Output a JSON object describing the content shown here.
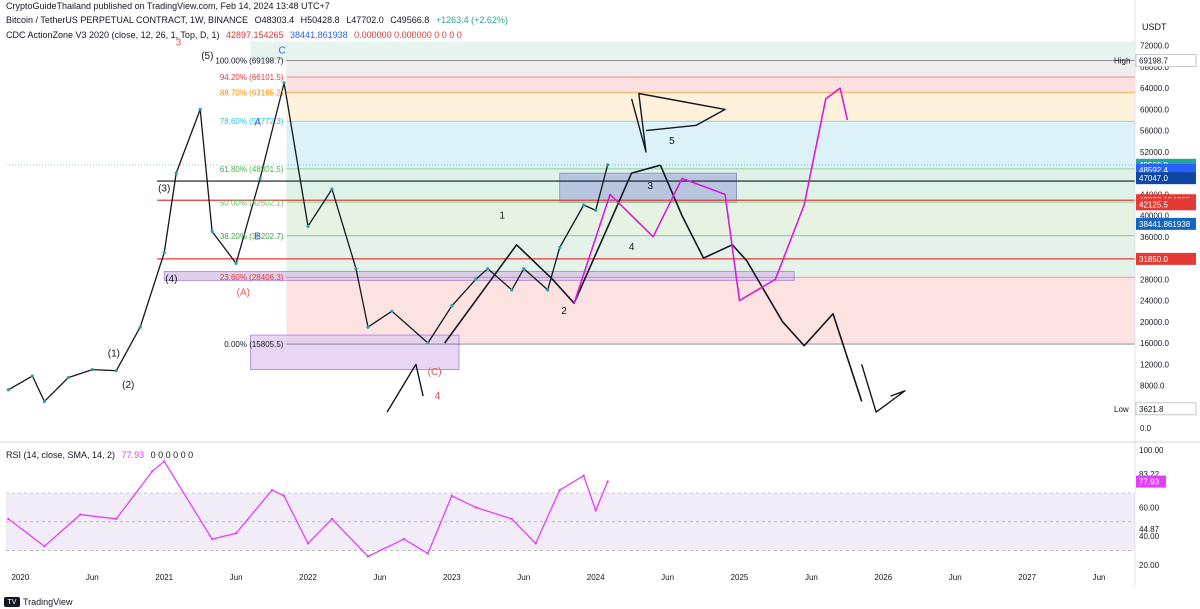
{
  "header": {
    "line1": "CryptoGuideThailand published on TradingView.com, Feb 14, 2024 13:48 UTC+7",
    "symbol": "Bitcoin / TetherUS PERPETUAL CONTRACT, 1W, BINANCE",
    "open": "O48303.4",
    "high": "H50428.8",
    "low": "L47702.0",
    "close": "C49566.8",
    "change": "+1263.4 (+2.62%)",
    "indicator": "CDC ActionZone V3 2020 (close, 12, 26, 1, Top, D, 1)",
    "ind_v1": "42897.154265",
    "ind_v2": "38441.861938",
    "ind_v3": "0.000000  0.000000  0  0  0  0",
    "rsi_label": "RSI (14, close, SMA, 14, 2)",
    "rsi_value": "77.93",
    "rsi_zeros": "0  0  0  0  0  0",
    "currency": "USDT",
    "brand": "TradingView"
  },
  "colors": {
    "up": "#26a69a",
    "down": "#ef5350",
    "rsi": "#e040fb",
    "pen": "#d81bd6",
    "accent": "#2962ff",
    "red_line": "#e53935",
    "black": "#131722"
  },
  "chart_data": [
    {
      "type": "line",
      "title": "Bitcoin / TetherUS PERPETUAL CONTRACT, 1W, BINANCE",
      "x_ticks": [
        "2020",
        "Jun",
        "2021",
        "Jun",
        "2022",
        "Jun",
        "2023",
        "Jun",
        "2024",
        "Jun",
        "2025",
        "Jun",
        "2026",
        "Jun",
        "2027",
        "Jun"
      ],
      "y_ticks": [
        72000,
        68000,
        64000,
        60000,
        56000,
        52000,
        48000,
        44000,
        40000,
        36000,
        32000,
        28000,
        24000,
        20000,
        16000,
        12000,
        8000,
        0
      ],
      "price_labels": [
        {
          "text": "69198.7",
          "tag": "High"
        },
        {
          "text": "49566.8",
          "sub": "4d 18h"
        },
        {
          "text": "48592.4"
        },
        {
          "text": "47047.0"
        },
        {
          "text": "42897.154265"
        },
        {
          "text": "42125.5"
        },
        {
          "text": "38441.861938"
        },
        {
          "text": "31850.0"
        },
        {
          "text": "3621.8",
          "tag": "Low"
        }
      ],
      "fib_levels": [
        {
          "label": "100.00% (69198.7)",
          "value": 69198.7
        },
        {
          "label": "94.20% (66101.5)",
          "value": 66101.5
        },
        {
          "label": "88.70% (63165.2)",
          "value": 63165.2
        },
        {
          "label": "78.60% (57772.3)",
          "value": 57772.3
        },
        {
          "label": "61.80% (48801.5)",
          "value": 48801.5
        },
        {
          "label": "50.00% (42502.1)",
          "value": 42502.1
        },
        {
          "label": "38.20% (36202.7)",
          "value": 36202.7
        },
        {
          "label": "23.60% (28406.3)",
          "value": 28406.3
        },
        {
          "label": "0.00% (15805.5)",
          "value": 15805.5
        }
      ],
      "series": [
        {
          "name": "BTCUSDT close",
          "points": [
            [
              "2019-12",
              7200
            ],
            [
              "2020-02",
              9800
            ],
            [
              "2020-03",
              5000
            ],
            [
              "2020-05",
              9500
            ],
            [
              "2020-07",
              11000
            ],
            [
              "2020-09",
              10800
            ],
            [
              "2020-11",
              19000
            ],
            [
              "2021-01",
              33000
            ],
            [
              "2021-02",
              48000
            ],
            [
              "2021-04",
              60000
            ],
            [
              "2021-05",
              37000
            ],
            [
              "2021-07",
              31000
            ],
            [
              "2021-09",
              47000
            ],
            [
              "2021-11",
              65000
            ],
            [
              "2022-01",
              38000
            ],
            [
              "2022-03",
              45000
            ],
            [
              "2022-05",
              30000
            ],
            [
              "2022-06",
              19000
            ],
            [
              "2022-08",
              22000
            ],
            [
              "2022-11",
              16000
            ],
            [
              "2023-01",
              23000
            ],
            [
              "2023-03",
              28000
            ],
            [
              "2023-04",
              30000
            ],
            [
              "2023-06",
              26000
            ],
            [
              "2023-07",
              30000
            ],
            [
              "2023-09",
              26000
            ],
            [
              "2023-10",
              34000
            ],
            [
              "2023-12",
              42000
            ],
            [
              "2024-01",
              41000
            ],
            [
              "2024-02",
              49566.8
            ]
          ]
        }
      ],
      "annotations": [
        "A",
        "B",
        "C",
        "(A)",
        "(C)",
        "1",
        "2",
        "3",
        "4",
        "5",
        "(1)",
        "(2)",
        "(3)",
        "(4)",
        "(5)"
      ]
    },
    {
      "type": "line",
      "title": "RSI (14, close, SMA, 14, 2)",
      "y_ticks": [
        100,
        83.22,
        77.93,
        60,
        44.87,
        40,
        20
      ],
      "series": [
        {
          "name": "RSI",
          "points": [
            [
              "2019-12",
              52
            ],
            [
              "2020-03",
              33
            ],
            [
              "2020-06",
              55
            ],
            [
              "2020-09",
              52
            ],
            [
              "2020-12",
              85
            ],
            [
              "2021-01",
              92
            ],
            [
              "2021-05",
              38
            ],
            [
              "2021-07",
              42
            ],
            [
              "2021-10",
              72
            ],
            [
              "2021-11",
              68
            ],
            [
              "2022-01",
              35
            ],
            [
              "2022-03",
              52
            ],
            [
              "2022-06",
              26
            ],
            [
              "2022-09",
              38
            ],
            [
              "2022-11",
              28
            ],
            [
              "2023-01",
              68
            ],
            [
              "2023-03",
              60
            ],
            [
              "2023-06",
              52
            ],
            [
              "2023-08",
              35
            ],
            [
              "2023-10",
              72
            ],
            [
              "2023-12",
              82
            ],
            [
              "2024-01",
              58
            ],
            [
              "2024-02",
              77.93
            ]
          ]
        }
      ]
    }
  ]
}
